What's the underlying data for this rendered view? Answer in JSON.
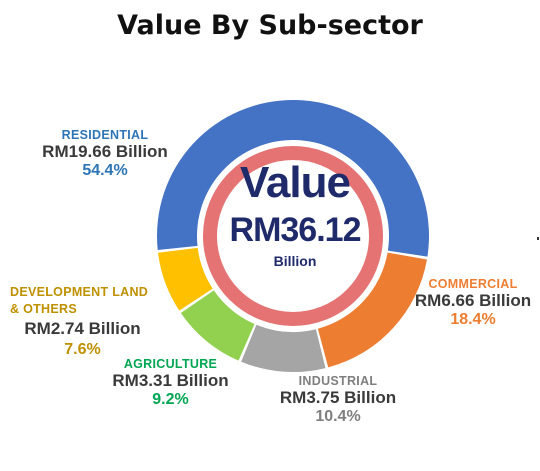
{
  "chart_data": {
    "type": "pie",
    "title": "Value By Sub-sector",
    "center": {
      "heading": "Value",
      "value": "RM36.12",
      "unit": "Billion"
    },
    "categories": [
      "RESIDENTIAL",
      "COMMERCIAL",
      "INDUSTRIAL",
      "AGRICULTURE",
      "DEVELOPMENT LAND & OTHERS"
    ],
    "values": [
      54.4,
      18.4,
      10.4,
      9.2,
      7.6
    ],
    "slices": [
      {
        "name": "RESIDENTIAL",
        "name_lines": [
          "RESIDENTIAL"
        ],
        "value_text": "RM19.66 Billion",
        "pct_text": "54.4%",
        "pct": 54.4,
        "color": "#4472c4",
        "label_color": "#2e75b6"
      },
      {
        "name": "COMMERCIAL",
        "name_lines": [
          "COMMERCIAL"
        ],
        "value_text": "RM6.66 Billion",
        "pct_text": "18.4%",
        "pct": 18.4,
        "color": "#ed7d31",
        "label_color": "#ed7d31"
      },
      {
        "name": "INDUSTRIAL",
        "name_lines": [
          "INDUSTRIAL"
        ],
        "value_text": "RM3.75 Billion",
        "pct_text": "10.4%",
        "pct": 10.4,
        "color": "#a5a5a5",
        "label_color": "#7f7f7f"
      },
      {
        "name": "AGRICULTURE",
        "name_lines": [
          "AGRICULTURE"
        ],
        "value_text": "RM3.31 Billion",
        "pct_text": "9.2%",
        "pct": 9.2,
        "color": "#92d050",
        "label_color": "#00a651"
      },
      {
        "name": "DEVELOPMENT LAND & OTHERS",
        "name_lines": [
          "DEVELOPMENT LAND",
          "& OTHERS"
        ],
        "value_text": "RM2.74 Billion",
        "pct_text": "7.6%",
        "pct": 7.6,
        "color": "#ffc000",
        "label_color": "#bf9000"
      }
    ],
    "inner_ring_color": "#e57373",
    "legend": "none"
  }
}
